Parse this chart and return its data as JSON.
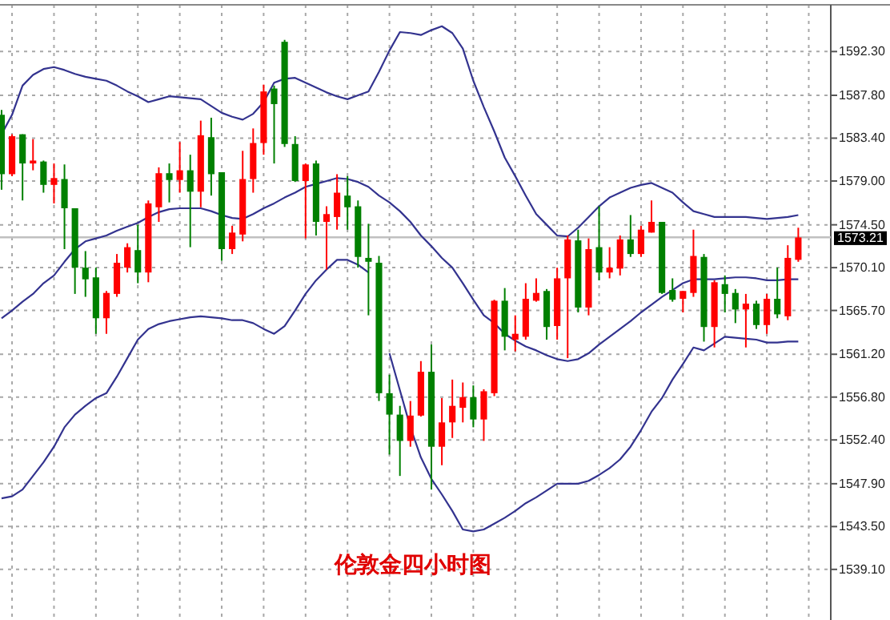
{
  "chart_data": {
    "type": "candlestick",
    "title": "伦敦金四小时图",
    "categories": [
      null,
      null,
      null,
      null,
      null,
      null,
      null,
      null,
      null,
      null,
      null,
      null,
      null,
      null,
      null,
      null,
      null,
      null,
      null,
      null,
      null,
      null,
      null,
      null,
      null,
      null,
      null,
      null,
      null,
      null,
      null,
      null,
      null,
      null,
      null,
      null,
      null,
      null,
      null,
      null,
      null,
      null,
      null,
      null,
      null,
      null,
      null,
      null,
      null,
      null,
      null,
      null,
      null,
      null,
      null,
      null,
      null,
      null,
      null,
      null,
      null,
      null,
      null,
      null,
      null,
      null,
      null,
      null,
      null,
      null,
      null,
      null,
      null,
      null,
      null,
      null,
      null
    ],
    "ohlc": [
      [
        1585.8,
        1586.3,
        1578.1,
        1579.7
      ],
      [
        1579.7,
        1583.8,
        1579.5,
        1583.6
      ],
      [
        1583.8,
        1583.8,
        1577.0,
        1580.8
      ],
      [
        1580.8,
        1583.3,
        1580.1,
        1581.1
      ],
      [
        1581.0,
        1581.1,
        1577.8,
        1578.6
      ],
      [
        1578.6,
        1580.8,
        1576.7,
        1579.3
      ],
      [
        1579.2,
        1580.7,
        1572.0,
        1576.2
      ],
      [
        1576.2,
        1576.2,
        1567.4,
        1570.1
      ],
      [
        1570.1,
        1571.8,
        1567.1,
        1568.9
      ],
      [
        1569.1,
        1570.1,
        1563.3,
        1564.9
      ],
      [
        1564.9,
        1567.7,
        1563.3,
        1567.5
      ],
      [
        1567.4,
        1571.5,
        1567.1,
        1570.6
      ],
      [
        1570.1,
        1572.6,
        1569.6,
        1572.2
      ],
      [
        1571.9,
        1574.5,
        1568.5,
        1569.6
      ],
      [
        1569.6,
        1577.0,
        1568.6,
        1576.7
      ],
      [
        1576.3,
        1580.4,
        1574.8,
        1579.8
      ],
      [
        1579.8,
        1580.8,
        1576.8,
        1579.1
      ],
      [
        1579.1,
        1583.0,
        1577.8,
        1580.1
      ],
      [
        1580.1,
        1581.7,
        1572.2,
        1577.9
      ],
      [
        1577.9,
        1585.2,
        1576.3,
        1583.7
      ],
      [
        1583.5,
        1585.5,
        1577.5,
        1579.7
      ],
      [
        1579.9,
        1579.9,
        1570.8,
        1572.0
      ],
      [
        1572.0,
        1574.4,
        1571.5,
        1573.7
      ],
      [
        1573.5,
        1582.1,
        1572.8,
        1579.2
      ],
      [
        1579.2,
        1584.4,
        1577.8,
        1582.9
      ],
      [
        1582.9,
        1588.9,
        1581.7,
        1588.2
      ],
      [
        1588.5,
        1588.8,
        1580.8,
        1586.9
      ],
      [
        1593.3,
        1593.5,
        1582.5,
        1582.8
      ],
      [
        1582.8,
        1583.6,
        1578.9,
        1579.0
      ],
      [
        1579.0,
        1580.8,
        1573.1,
        1580.7
      ],
      [
        1580.8,
        1581.1,
        1573.4,
        1574.8
      ],
      [
        1574.8,
        1576.4,
        1569.9,
        1575.6
      ],
      [
        1575.3,
        1579.7,
        1574.0,
        1577.8
      ],
      [
        1577.5,
        1579.5,
        1574.0,
        1576.3
      ],
      [
        1576.4,
        1577.0,
        1570.1,
        1571.2
      ],
      [
        1571.1,
        1574.6,
        1565.2,
        1570.7
      ],
      [
        1570.6,
        1571.3,
        1556.4,
        1557.2
      ],
      [
        1557.2,
        1559.1,
        1550.9,
        1555.0
      ],
      [
        1555.0,
        1555.9,
        1548.7,
        1552.3
      ],
      [
        1552.3,
        1556.4,
        1551.7,
        1554.9
      ],
      [
        1554.9,
        1560.5,
        1554.8,
        1559.4
      ],
      [
        1559.4,
        1562.2,
        1547.3,
        1551.7
      ],
      [
        1551.7,
        1556.7,
        1549.8,
        1554.2
      ],
      [
        1554.2,
        1558.6,
        1552.6,
        1555.9
      ],
      [
        1555.7,
        1558.3,
        1554.2,
        1556.8
      ],
      [
        1556.8,
        1558.0,
        1553.7,
        1554.5
      ],
      [
        1554.5,
        1557.6,
        1552.3,
        1557.4
      ],
      [
        1557.2,
        1566.8,
        1556.9,
        1566.7
      ],
      [
        1566.7,
        1568.0,
        1561.6,
        1563.0
      ],
      [
        1562.7,
        1565.2,
        1561.5,
        1563.3
      ],
      [
        1563.0,
        1568.5,
        1562.7,
        1566.9
      ],
      [
        1566.7,
        1569.0,
        1566.6,
        1567.5
      ],
      [
        1567.7,
        1567.9,
        1562.7,
        1564.0
      ],
      [
        1564.1,
        1570.1,
        1562.7,
        1569.0
      ],
      [
        1569.0,
        1573.4,
        1560.8,
        1573.0
      ],
      [
        1572.9,
        1574.0,
        1565.5,
        1566.0
      ],
      [
        1566.0,
        1573.1,
        1565.2,
        1572.0
      ],
      [
        1572.2,
        1576.4,
        1568.8,
        1569.6
      ],
      [
        1569.6,
        1572.2,
        1569.0,
        1570.1
      ],
      [
        1570.0,
        1573.4,
        1569.3,
        1573.0
      ],
      [
        1573.0,
        1575.5,
        1571.2,
        1571.5
      ],
      [
        1571.5,
        1574.4,
        1571.2,
        1574.0
      ],
      [
        1573.7,
        1577.0,
        1573.7,
        1574.8
      ],
      [
        1574.8,
        1574.8,
        1567.4,
        1567.5
      ],
      [
        1567.8,
        1569.0,
        1566.6,
        1566.8
      ],
      [
        1566.9,
        1567.7,
        1565.5,
        1567.7
      ],
      [
        1567.5,
        1574.0,
        1567.1,
        1571.3
      ],
      [
        1571.2,
        1571.5,
        1562.5,
        1564.0
      ],
      [
        1564.0,
        1568.8,
        1561.9,
        1568.6
      ],
      [
        1568.4,
        1569.3,
        1565.5,
        1567.4
      ],
      [
        1567.5,
        1567.9,
        1564.4,
        1565.8
      ],
      [
        1565.8,
        1567.4,
        1561.9,
        1566.4
      ],
      [
        1566.4,
        1566.7,
        1563.8,
        1564.2
      ],
      [
        1564.2,
        1567.4,
        1563.3,
        1566.9
      ],
      [
        1566.9,
        1570.1,
        1564.9,
        1565.3
      ],
      [
        1565.1,
        1572.4,
        1564.7,
        1571.1
      ],
      [
        1570.9,
        1574.2,
        1570.7,
        1573.2
      ]
    ],
    "colors": [
      "#008000",
      "#ff0000",
      "#008000",
      "#ff0000",
      "#008000",
      "#ff0000",
      "#008000",
      "#008000",
      "#008000",
      "#008000",
      "#ff0000",
      "#ff0000",
      "#ff0000",
      "#008000",
      "#ff0000",
      "#ff0000",
      "#008000",
      "#ff0000",
      "#008000",
      "#ff0000",
      "#008000",
      "#008000",
      "#ff0000",
      "#ff0000",
      "#ff0000",
      "#ff0000",
      "#008000",
      "#008000",
      "#008000",
      "#ff0000",
      "#008000",
      "#ff0000",
      "#ff0000",
      "#008000",
      "#008000",
      "#008000",
      "#008000",
      "#008000",
      "#008000",
      "#ff0000",
      "#ff0000",
      "#008000",
      "#ff0000",
      "#ff0000",
      "#ff0000",
      "#008000",
      "#ff0000",
      "#ff0000",
      "#008000",
      "#ff0000",
      "#ff0000",
      "#ff0000",
      "#008000",
      "#ff0000",
      "#ff0000",
      "#008000",
      "#ff0000",
      "#008000",
      "#ff0000",
      "#ff0000",
      "#008000",
      "#ff0000",
      "#ff0000",
      "#008000",
      "#008000",
      "#ff0000",
      "#ff0000",
      "#008000",
      "#ff0000",
      "#008000",
      "#008000",
      "#ff0000",
      "#008000",
      "#ff0000",
      "#008000",
      "#ff0000",
      "#ff0000"
    ],
    "series": [
      {
        "type": "line",
        "color": "#33338f",
        "values": [
          1583.8,
          1585.8,
          1588.8,
          1589.9,
          1590.5,
          1590.7,
          1590.4,
          1590.0,
          1589.7,
          1589.5,
          1589.3,
          1588.8,
          1588.2,
          1587.7,
          1587.1,
          1587.4,
          1587.7,
          1587.6,
          1587.5,
          1587.4,
          1586.7,
          1586.0,
          1585.6,
          1585.3,
          1585.9,
          1587.1,
          1589.1,
          1589.5,
          1589.6,
          1589.1,
          1588.6,
          1588.1,
          1587.7,
          1587.4,
          1587.8,
          1588.2,
          1590.2,
          1592.4,
          1594.3,
          1594.2,
          1594.0,
          1594.5,
          1594.9,
          1594.2,
          1592.6,
          1589.3,
          1586.6,
          1584.1,
          1581.4,
          1579.5,
          1577.5,
          1575.6,
          1574.5,
          1573.4,
          1573.3,
          1574.2,
          1575.3,
          1576.4,
          1577.3,
          1577.8,
          1578.3,
          1578.6,
          1578.8,
          1578.3,
          1577.8,
          1576.8,
          1575.9,
          1575.6,
          1575.3,
          1575.3,
          1575.3,
          1575.3,
          1575.2,
          1575.1,
          1575.2,
          1575.3,
          1575.5
        ]
      },
      {
        "type": "line",
        "color": "#33338f",
        "values": [
          1564.9,
          1565.7,
          1566.6,
          1567.4,
          1568.5,
          1569.3,
          1570.7,
          1572.0,
          1572.8,
          1573.1,
          1573.4,
          1573.9,
          1574.3,
          1574.7,
          1575.3,
          1575.8,
          1576.1,
          1576.2,
          1576.2,
          1576.2,
          1575.9,
          1575.5,
          1575.2,
          1575.1,
          1575.6,
          1576.2,
          1576.7,
          1577.3,
          1577.8,
          1578.4,
          1578.7,
          1579.0,
          1579.3,
          1579.2,
          1578.9,
          1578.4,
          1577.5,
          1576.8,
          1575.9,
          1574.8,
          1573.4,
          1572.3,
          1571.1,
          1570.1,
          1568.5,
          1566.8,
          1565.2,
          1564.4,
          1563.3,
          1562.6,
          1562.0,
          1561.6,
          1561.1,
          1560.7,
          1560.5,
          1560.7,
          1561.3,
          1562.2,
          1563.0,
          1563.8,
          1564.6,
          1565.5,
          1566.3,
          1567.1,
          1567.8,
          1568.5,
          1568.9,
          1568.9,
          1568.9,
          1569.0,
          1569.1,
          1569.1,
          1569.0,
          1568.8,
          1568.8,
          1568.9,
          1568.9
        ]
      },
      {
        "type": "line",
        "color": "#33338f",
        "values": [
          1546.4,
          1546.6,
          1547.3,
          1548.7,
          1550.1,
          1551.7,
          1553.7,
          1555.0,
          1555.9,
          1556.7,
          1557.2,
          1558.9,
          1560.8,
          1562.7,
          1563.8,
          1564.3,
          1564.6,
          1564.8,
          1565.0,
          1565.1,
          1565.0,
          1564.9,
          1564.7,
          1564.7,
          1564.4,
          1563.8,
          1563.3,
          1564.1,
          1565.7,
          1567.4,
          1568.8,
          1569.9,
          1570.9,
          1570.9,
          1570.4,
          1569.6,
          null,
          1561.3,
          1557.5,
          1553.7,
          1550.6,
          1548.4,
          1546.8,
          1545.1,
          1543.2,
          1543.0,
          1543.2,
          1543.8,
          1544.4,
          1545.1,
          1545.9,
          1546.5,
          1547.2,
          1547.9,
          1547.9,
          1547.9,
          1548.2,
          1548.8,
          1549.5,
          1550.4,
          1551.7,
          1553.4,
          1555.3,
          1556.7,
          1558.6,
          1560.2,
          1561.9,
          1561.6,
          1562.3,
          1563.0,
          1562.9,
          1562.8,
          1562.7,
          1562.4,
          1562.4,
          1562.5,
          1562.5
        ]
      }
    ],
    "ylim": [
      1533.9,
      1597.1
    ],
    "yticks": [
      {
        "value": 1539.1,
        "label": "1539.10"
      },
      {
        "value": 1543.5,
        "label": "1543.50"
      },
      {
        "value": 1547.9,
        "label": "1547.90"
      },
      {
        "value": 1552.4,
        "label": "1552.40"
      },
      {
        "value": 1556.8,
        "label": "1556.80"
      },
      {
        "value": 1561.2,
        "label": "1561.20"
      },
      {
        "value": 1565.7,
        "label": "1565.70"
      },
      {
        "value": 1570.1,
        "label": "1570.10"
      },
      {
        "value": 1574.5,
        "label": "1574.50"
      },
      {
        "value": 1579.0,
        "label": "1579.00"
      },
      {
        "value": 1583.4,
        "label": "1583.40"
      },
      {
        "value": 1587.8,
        "label": "1587.80"
      },
      {
        "value": 1592.3,
        "label": "1592.30"
      }
    ],
    "ref_lines": [
      {
        "axis": "y",
        "value": 1573.21,
        "label": "1573.21",
        "color": "#c0c0c0"
      }
    ],
    "grid": true
  }
}
